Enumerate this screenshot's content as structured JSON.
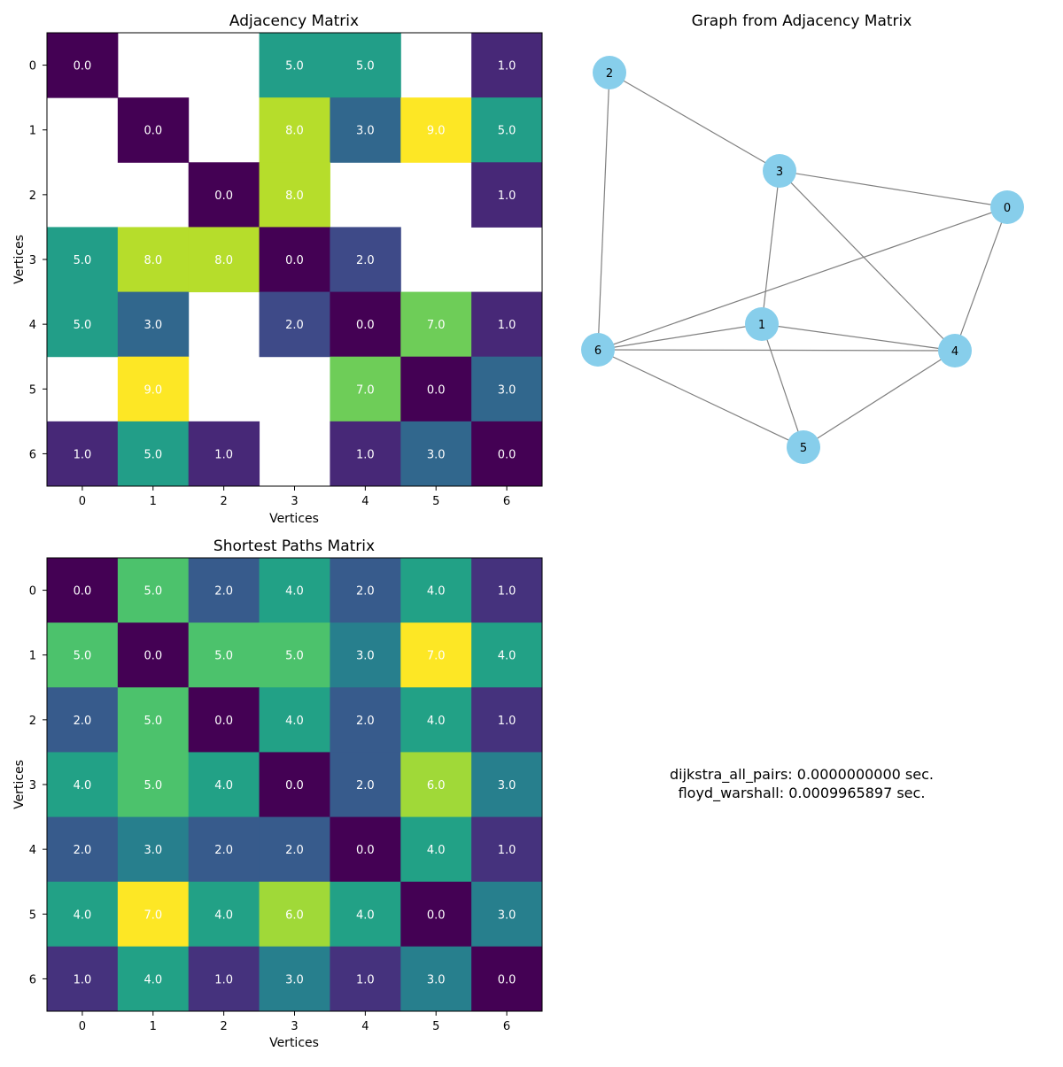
{
  "figure_title": "",
  "chart_data": [
    {
      "type": "heatmap",
      "title": "Adjacency Matrix",
      "xlabel": "Vertices",
      "ylabel": "Vertices",
      "x_ticks": [
        "0",
        "1",
        "2",
        "3",
        "4",
        "5",
        "6"
      ],
      "y_ticks": [
        "0",
        "1",
        "2",
        "3",
        "4",
        "5",
        "6"
      ],
      "colormap": "viridis",
      "value_range": [
        0,
        9
      ],
      "missing_color": "#ffffff",
      "matrix": [
        [
          0,
          null,
          null,
          5,
          5,
          null,
          1
        ],
        [
          null,
          0,
          null,
          8,
          3,
          9,
          5
        ],
        [
          null,
          null,
          0,
          8,
          null,
          null,
          1
        ],
        [
          5,
          8,
          8,
          0,
          2,
          null,
          null
        ],
        [
          5,
          3,
          null,
          2,
          0,
          7,
          1
        ],
        [
          null,
          9,
          null,
          null,
          7,
          0,
          3
        ],
        [
          1,
          5,
          1,
          null,
          1,
          3,
          0
        ]
      ]
    },
    {
      "type": "graph",
      "title": "Graph from Adjacency Matrix",
      "node_color": "#87ceeb",
      "edge_color": "#808080",
      "nodes": [
        "0",
        "1",
        "2",
        "3",
        "4",
        "5",
        "6"
      ],
      "edges": [
        [
          0,
          3
        ],
        [
          0,
          4
        ],
        [
          0,
          6
        ],
        [
          1,
          3
        ],
        [
          1,
          4
        ],
        [
          1,
          5
        ],
        [
          1,
          6
        ],
        [
          2,
          3
        ],
        [
          2,
          6
        ],
        [
          3,
          4
        ],
        [
          4,
          5
        ],
        [
          4,
          6
        ],
        [
          5,
          6
        ]
      ]
    },
    {
      "type": "heatmap",
      "title": "Shortest Paths Matrix",
      "xlabel": "Vertices",
      "ylabel": "Vertices",
      "x_ticks": [
        "0",
        "1",
        "2",
        "3",
        "4",
        "5",
        "6"
      ],
      "y_ticks": [
        "0",
        "1",
        "2",
        "3",
        "4",
        "5",
        "6"
      ],
      "colormap": "viridis",
      "value_range": [
        0,
        7
      ],
      "matrix": [
        [
          0,
          5,
          2,
          4,
          2,
          4,
          1
        ],
        [
          5,
          0,
          5,
          5,
          3,
          7,
          4
        ],
        [
          2,
          5,
          0,
          4,
          2,
          4,
          1
        ],
        [
          4,
          5,
          4,
          0,
          2,
          6,
          3
        ],
        [
          2,
          3,
          2,
          2,
          0,
          4,
          1
        ],
        [
          4,
          7,
          4,
          6,
          4,
          0,
          3
        ],
        [
          1,
          4,
          1,
          3,
          1,
          3,
          0
        ]
      ]
    }
  ],
  "timings": {
    "line1": "dijkstra_all_pairs: 0.0000000000 sec.",
    "line2": "floyd_warshall: 0.0009965897 sec."
  }
}
